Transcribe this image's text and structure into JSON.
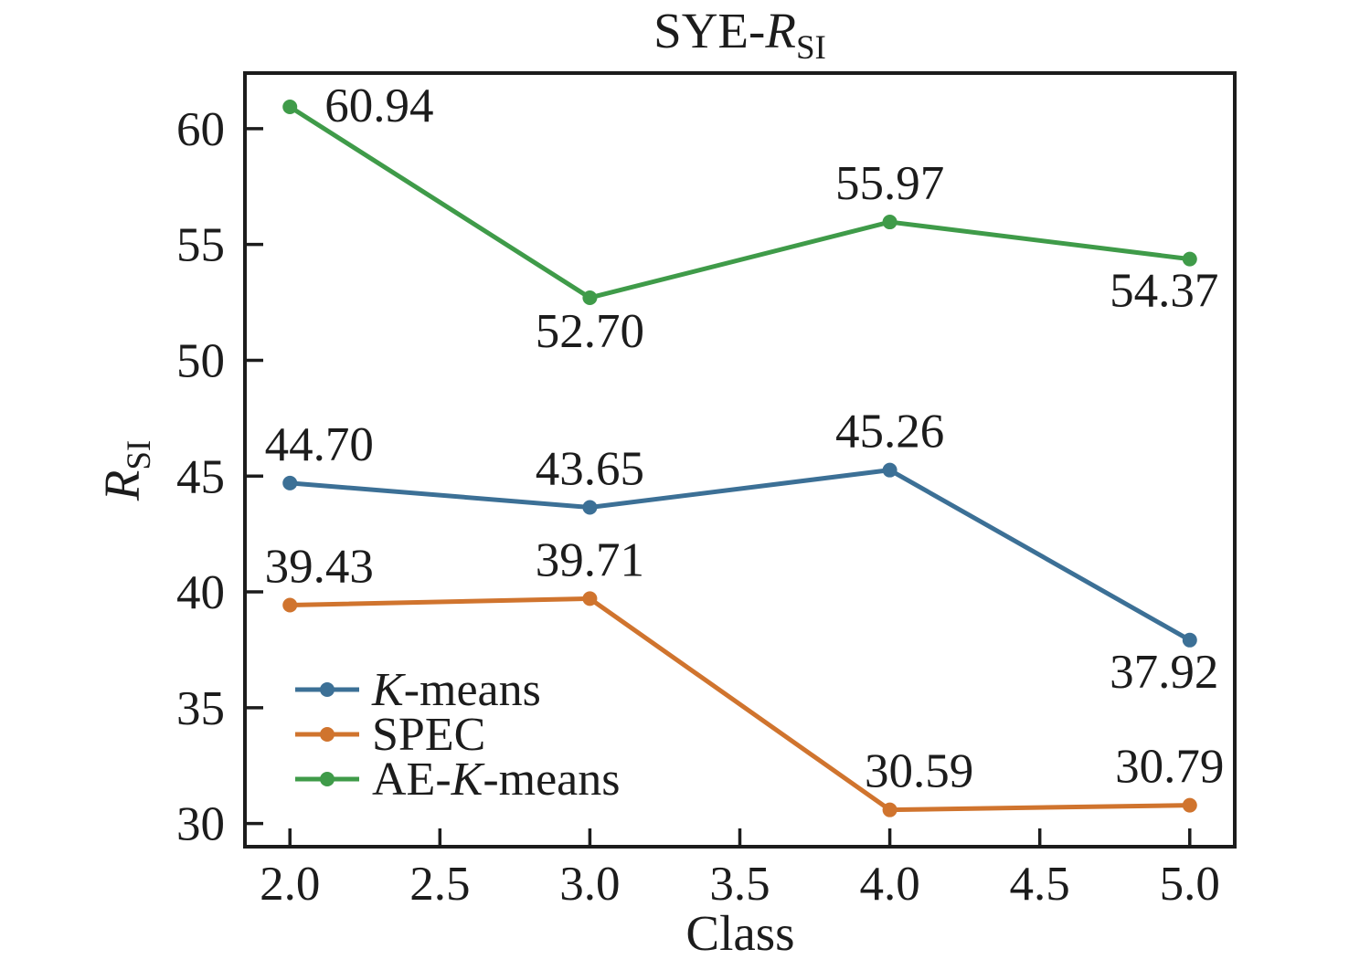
{
  "figure": {
    "background": "#ffffff",
    "text_color": "#1c1c1c"
  },
  "chart_data": {
    "type": "line",
    "title": "SYE-R_SI",
    "title_parts": [
      {
        "text": "SYE-"
      },
      {
        "text": "R",
        "italic": true
      },
      {
        "text": "SI",
        "subscript": true
      }
    ],
    "xlabel": "Class",
    "ylabel": "R_SI",
    "ylabel_parts": [
      {
        "text": "R",
        "italic": true
      },
      {
        "text": "SI",
        "subscript": true
      }
    ],
    "x": [
      2.0,
      3.0,
      4.0,
      5.0
    ],
    "xlim": [
      1.85,
      5.15
    ],
    "ylim": [
      29.0,
      62.4
    ],
    "xtick_labels": [
      "2.0",
      "2.5",
      "3.0",
      "3.5",
      "4.0",
      "4.5",
      "5.0"
    ],
    "yticks": [
      30,
      35,
      40,
      45,
      50,
      55,
      60
    ],
    "grid": false,
    "axis_color": "#1c1c1c",
    "series": [
      {
        "name": "K-means",
        "name_parts": [
          {
            "text": "K",
            "italic": true
          },
          {
            "text": "-means"
          }
        ],
        "color": "#3c7096",
        "values": [
          44.7,
          43.65,
          45.26,
          37.92
        ],
        "point_labels": [
          "44.70",
          "43.65",
          "45.26",
          "37.92"
        ],
        "label_pos": [
          "above-right",
          "above",
          "above",
          "below-left"
        ]
      },
      {
        "name": "SPEC",
        "name_parts": [
          {
            "text": "SPEC"
          }
        ],
        "color": "#d0742e",
        "values": [
          39.43,
          39.71,
          30.59,
          30.79
        ],
        "point_labels": [
          "39.43",
          "39.71",
          "30.59",
          "30.79"
        ],
        "label_pos": [
          "above-right",
          "above",
          "above-right",
          "above-left"
        ]
      },
      {
        "name": "AE-K-means",
        "name_parts": [
          {
            "text": "AE-"
          },
          {
            "text": "K",
            "italic": true
          },
          {
            "text": "-means"
          }
        ],
        "color": "#3f9b49",
        "values": [
          60.94,
          52.7,
          55.97,
          54.37
        ],
        "point_labels": [
          "60.94",
          "52.70",
          "55.97",
          "54.37"
        ],
        "label_pos": [
          "right",
          "below",
          "above",
          "below-left"
        ]
      }
    ],
    "legend": {
      "position": "lower-left",
      "frame": false,
      "items": [
        "K-means",
        "SPEC",
        "AE-K-means"
      ]
    }
  }
}
